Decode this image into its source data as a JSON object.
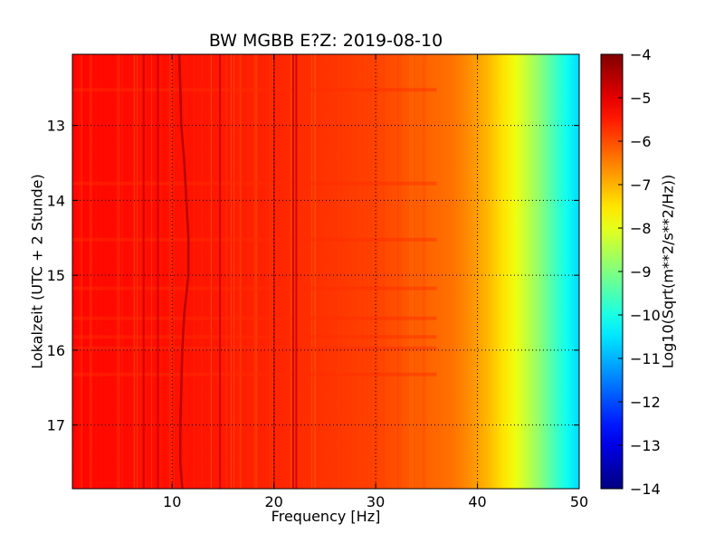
{
  "chart_data": {
    "type": "heatmap",
    "title": "BW MGBB E?Z: 2019-08-10",
    "xlabel": "Frequency [Hz]",
    "ylabel": "Lokalzeit (UTC + 2 Stunde)",
    "xlim": [
      0.2,
      50
    ],
    "ylim": [
      17.85,
      12.05
    ],
    "x_ticks": [
      10,
      20,
      30,
      40,
      50
    ],
    "y_ticks": [
      13,
      14,
      15,
      16,
      17
    ],
    "y_inverted": true,
    "grid": true,
    "colorscale": "jet",
    "colorbar": {
      "label": "Log10(Sqrt(m**2/s**2/Hz))",
      "range": [
        -14,
        -4
      ],
      "ticks": [
        -4,
        -5,
        -6,
        -7,
        -8,
        -9,
        -10,
        -11,
        -12,
        -13,
        -14
      ]
    },
    "level_vs_frequency": {
      "frequency_hz": [
        0,
        10,
        20,
        30,
        38,
        40,
        42,
        44,
        46,
        48,
        50
      ],
      "log10_amplitude": [
        -5.3,
        -5.4,
        -5.6,
        -5.9,
        -6.4,
        -6.8,
        -7.3,
        -8.0,
        -8.8,
        -9.8,
        -10.6
      ]
    },
    "vertical_lines_hz": [
      7.2,
      8.6,
      14.7,
      20.0,
      21.9,
      22.2
    ],
    "wandering_line_hz": [
      {
        "t": 12.05,
        "f": 10.7
      },
      {
        "t": 12.5,
        "f": 10.8
      },
      {
        "t": 13.0,
        "f": 10.9
      },
      {
        "t": 13.5,
        "f": 11.2
      },
      {
        "t": 14.0,
        "f": 11.4
      },
      {
        "t": 14.5,
        "f": 11.6
      },
      {
        "t": 15.0,
        "f": 11.6
      },
      {
        "t": 15.5,
        "f": 11.2
      },
      {
        "t": 16.0,
        "f": 11.0
      },
      {
        "t": 16.5,
        "f": 10.9
      },
      {
        "t": 17.0,
        "f": 10.8
      },
      {
        "t": 17.5,
        "f": 10.8
      },
      {
        "t": 17.85,
        "f": 11.0
      }
    ],
    "horizontal_bands_h": [
      12.5,
      13.75,
      14.5,
      15.15,
      15.55,
      15.8,
      15.95,
      16.3
    ]
  }
}
